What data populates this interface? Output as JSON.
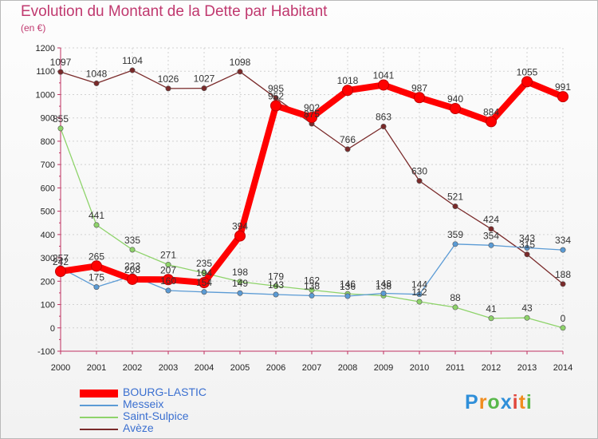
{
  "title": "Evolution du Montant de la Dette par Habitant",
  "unit": "(en €)",
  "logo": {
    "text": "Proxiti",
    "letters": [
      "P",
      "r",
      "o",
      "x",
      "i",
      "t",
      "i"
    ],
    "colors": [
      "#2f8fd9",
      "#f08c1e",
      "#59b84b",
      "#2f8fd9",
      "#e0463c",
      "#f08c1e",
      "#59b84b"
    ]
  },
  "chart_data": {
    "type": "line",
    "title": "Evolution du Montant de la Dette par Habitant",
    "ylabel": "(en €)",
    "xlabel": "",
    "ylim": [
      -100,
      1200
    ],
    "yticks": [
      -100,
      0,
      100,
      200,
      300,
      400,
      500,
      600,
      700,
      800,
      900,
      1000,
      1100,
      1200
    ],
    "grid": true,
    "legend": "bottom-left",
    "categories": [
      "2000",
      "2001",
      "2002",
      "2003",
      "2004",
      "2005",
      "2006",
      "2007",
      "2008",
      "2009",
      "2010",
      "2011",
      "2012",
      "2013",
      "2014"
    ],
    "series": [
      {
        "name": "Avèze",
        "color": "#7a2a2a",
        "values": [
          1097,
          1048,
          1104,
          1026,
          1027,
          1098,
          985,
          875,
          766,
          863,
          630,
          521,
          424,
          315,
          188
        ],
        "labels": [
          "1097",
          "1048",
          "1104",
          "1026",
          "1027",
          "1098",
          "985",
          "875",
          "766",
          "863",
          "630",
          "521",
          "424",
          "315",
          "188"
        ]
      },
      {
        "name": "Saint-Sulpice",
        "color": "#8ed36a",
        "values": [
          855,
          441,
          335,
          271,
          235,
          198,
          179,
          162,
          146,
          138,
          112,
          88,
          41,
          43,
          0
        ],
        "labels": [
          "855",
          "441",
          "335",
          "271",
          "235",
          "198",
          "179",
          "162",
          "146",
          "138",
          "112",
          "88",
          "41",
          "43",
          "0"
        ]
      },
      {
        "name": "Messeix",
        "color": "#5b9bd5",
        "values": [
          257,
          175,
          223,
          160,
          154,
          149,
          143,
          138,
          136,
          148,
          144,
          359,
          354,
          343,
          334
        ],
        "labels": [
          "257",
          "175",
          "223",
          "160",
          "154",
          "149",
          "143",
          "138",
          "136",
          "148",
          "144",
          "359",
          "354",
          "343",
          "334"
        ]
      },
      {
        "name": "BOURG-LASTIC",
        "color": "#ff0000",
        "values": [
          242,
          265,
          208,
          207,
          194,
          394,
          952,
          902,
          1018,
          1041,
          987,
          940,
          884,
          1055,
          991
        ],
        "labels": [
          "242",
          "265",
          "208",
          "207",
          "194",
          "394",
          "952",
          "902",
          "1018",
          "1041",
          "987",
          "940",
          "884",
          "1055",
          "991"
        ]
      }
    ]
  },
  "legend_items": [
    {
      "label": "BOURG-LASTIC",
      "color": "#ff0000"
    },
    {
      "label": "Messeix",
      "color": "#5b9bd5"
    },
    {
      "label": "Saint-Sulpice",
      "color": "#8ed36a"
    },
    {
      "label": "Avèze",
      "color": "#7a2a2a"
    }
  ]
}
